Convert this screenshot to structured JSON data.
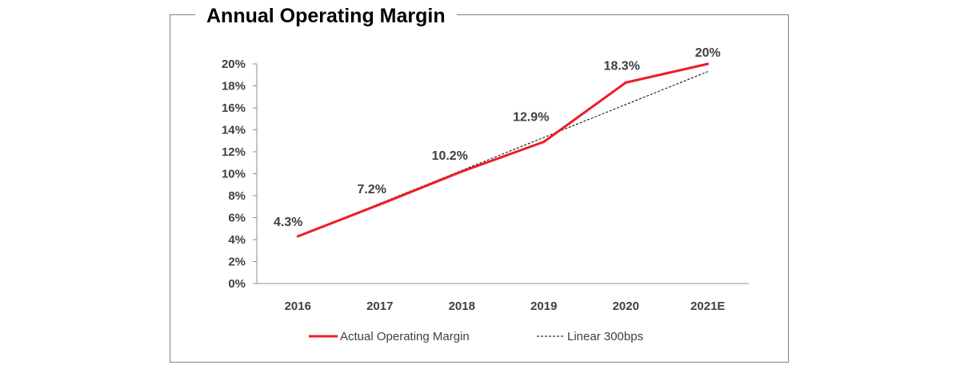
{
  "chart_data": {
    "type": "line",
    "title": "Annual Operating Margin",
    "xlabel": "",
    "ylabel": "",
    "categories": [
      "2016",
      "2017",
      "2018",
      "2019",
      "2020",
      "2021E"
    ],
    "ylim": [
      0,
      20
    ],
    "y_ticks": [
      "0%",
      "2%",
      "4%",
      "6%",
      "8%",
      "10%",
      "12%",
      "14%",
      "16%",
      "18%",
      "20%"
    ],
    "grid": false,
    "legend_placement": "bottom",
    "series": [
      {
        "name": "Actual Operating Margin",
        "values": [
          4.3,
          7.2,
          10.2,
          12.9,
          18.3,
          20
        ],
        "data_labels": [
          "4.3%",
          "7.2%",
          "10.2%",
          "12.9%",
          "18.3%",
          "20%"
        ],
        "color": "#ee1c25",
        "style": "solid"
      },
      {
        "name": "Linear 300bps",
        "values": [
          4.3,
          7.3,
          10.3,
          13.3,
          16.3,
          19.3
        ],
        "color": "#000000",
        "style": "dashed"
      }
    ]
  }
}
